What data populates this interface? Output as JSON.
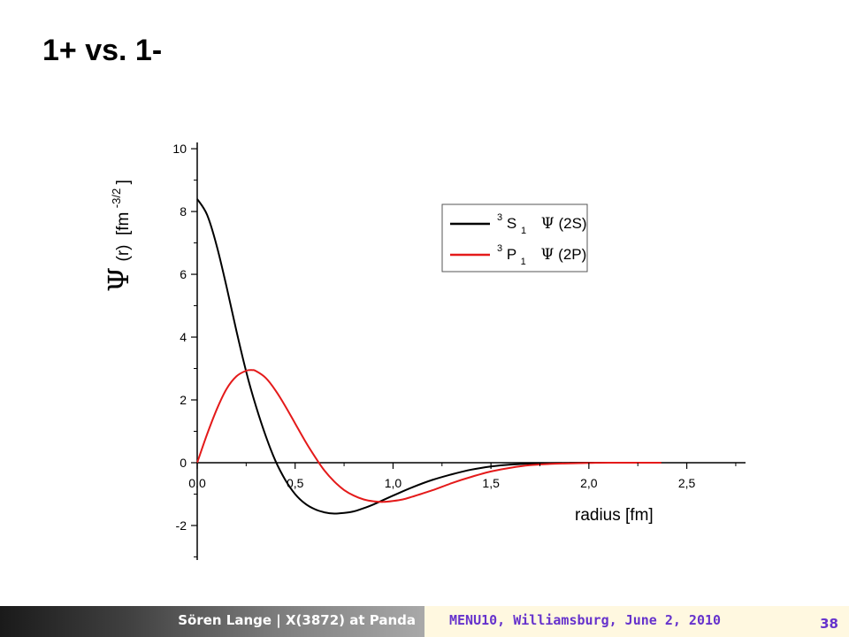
{
  "slide": {
    "title": "1+ vs. 1-"
  },
  "footer": {
    "author": "Sören Lange | X(3872) at Panda",
    "conference": "MENU10, Williamsburg, June 2, 2010",
    "page_number": "38"
  },
  "chart_data": {
    "type": "line",
    "xlabel": "radius [fm]",
    "ylabel": {
      "symbol": "Ψ",
      "arg": "(r)",
      "unit": "[fm",
      "exp": "-3/2",
      "close": "]"
    },
    "xlim": [
      0,
      2.8
    ],
    "ylim": [
      -3.1,
      10.2
    ],
    "x_ticks": [
      "0,0",
      "0,5",
      "1,0",
      "1,5",
      "2,0",
      "2,5"
    ],
    "x_tick_values": [
      0,
      0.5,
      1.0,
      1.5,
      2.0,
      2.5
    ],
    "y_ticks": [
      "-2",
      "0",
      "2",
      "4",
      "6",
      "8",
      "10"
    ],
    "y_tick_values": [
      -2,
      0,
      2,
      4,
      6,
      8,
      10
    ],
    "grid": false,
    "legend_position": "top-right",
    "series": [
      {
        "name": "3S1 Ψ(2S)",
        "legend": {
          "sup": "3",
          "base": "S",
          "sub": "1",
          "psi": "Ψ",
          "state": "(2S)"
        },
        "color": "#000000",
        "x": [
          0.0,
          0.05,
          0.1,
          0.15,
          0.2,
          0.25,
          0.3,
          0.35,
          0.4,
          0.45,
          0.5,
          0.55,
          0.6,
          0.65,
          0.7,
          0.75,
          0.8,
          0.85,
          0.9,
          1.0,
          1.1,
          1.2,
          1.3,
          1.4,
          1.5,
          1.6,
          1.7,
          1.8,
          1.9,
          2.0,
          2.1,
          2.2,
          2.3,
          2.37
        ],
        "y": [
          8.4,
          7.9,
          6.9,
          5.6,
          4.2,
          2.9,
          1.8,
          0.85,
          0.05,
          -0.55,
          -1.0,
          -1.3,
          -1.48,
          -1.58,
          -1.62,
          -1.6,
          -1.55,
          -1.45,
          -1.33,
          -1.05,
          -0.78,
          -0.55,
          -0.37,
          -0.22,
          -0.12,
          -0.06,
          -0.03,
          -0.015,
          -0.005,
          0.0,
          0.0,
          0.0,
          0.0,
          0.0
        ]
      },
      {
        "name": "3P1 Ψ(2P)",
        "legend": {
          "sup": "3",
          "base": "P",
          "sub": "1",
          "psi": "Ψ",
          "state": "(2P)"
        },
        "color": "#e41a1a",
        "x": [
          0.0,
          0.05,
          0.1,
          0.15,
          0.2,
          0.25,
          0.28,
          0.3,
          0.35,
          0.4,
          0.45,
          0.5,
          0.55,
          0.6,
          0.65,
          0.7,
          0.75,
          0.8,
          0.85,
          0.9,
          0.95,
          1.0,
          1.05,
          1.1,
          1.2,
          1.3,
          1.4,
          1.5,
          1.6,
          1.7,
          1.8,
          1.9,
          2.0,
          2.1,
          2.2,
          2.3,
          2.37
        ],
        "y": [
          0.0,
          0.9,
          1.7,
          2.35,
          2.75,
          2.93,
          2.95,
          2.92,
          2.7,
          2.3,
          1.8,
          1.25,
          0.7,
          0.2,
          -0.25,
          -0.6,
          -0.87,
          -1.05,
          -1.17,
          -1.23,
          -1.25,
          -1.22,
          -1.17,
          -1.08,
          -0.88,
          -0.65,
          -0.45,
          -0.28,
          -0.16,
          -0.08,
          -0.04,
          -0.02,
          -0.01,
          0.0,
          0.0,
          0.0,
          0.0
        ]
      }
    ]
  }
}
